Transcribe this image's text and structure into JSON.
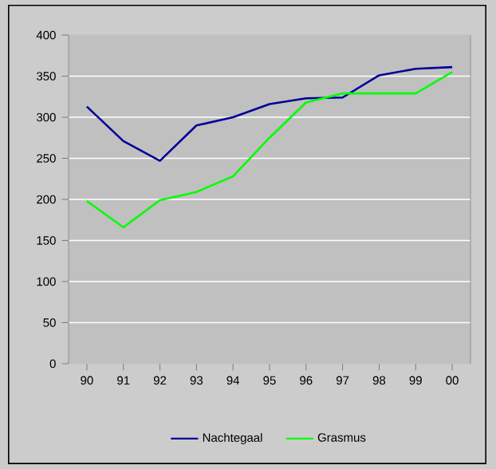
{
  "chart_data": {
    "type": "line",
    "categories": [
      "90",
      "91",
      "92",
      "93",
      "94",
      "95",
      "96",
      "97",
      "98",
      "99",
      "00"
    ],
    "series": [
      {
        "name": "Nachtegaal",
        "color": "#000099",
        "values": [
          313,
          271,
          247,
          290,
          300,
          316,
          323,
          324,
          351,
          359,
          361
        ]
      },
      {
        "name": "Grasmus",
        "color": "#00ff00",
        "values": [
          198,
          166,
          199,
          209,
          228,
          275,
          318,
          329,
          329,
          329,
          355
        ]
      }
    ],
    "ylim": [
      0,
      400
    ],
    "yticks": [
      0,
      50,
      100,
      150,
      200,
      250,
      300,
      350,
      400
    ],
    "grid": "y",
    "legend": "bottom",
    "marker": "none",
    "line_style": "solid"
  }
}
